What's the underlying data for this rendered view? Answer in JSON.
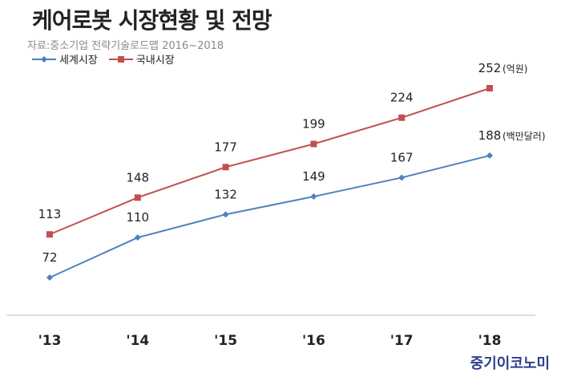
{
  "title": "케어로봇 시장현황 및 전망",
  "source": "자료:중소기업 전략기술로드맵 2016~2018",
  "brand": "중기이코노미",
  "chart_data": {
    "type": "line",
    "categories": [
      "'13",
      "'14",
      "'15",
      "'16",
      "'17",
      "'18"
    ],
    "series": [
      {
        "name": "세계시장",
        "values": [
          72,
          110,
          132,
          149,
          167,
          188
        ],
        "unit": "(백만달러)",
        "color": "#4f81bd",
        "marker": "diamond"
      },
      {
        "name": "국내시장",
        "values": [
          113,
          148,
          177,
          199,
          224,
          252
        ],
        "unit": "(억원)",
        "color": "#c0504d",
        "marker": "square"
      }
    ],
    "legend_position": "top-left",
    "grid": false
  }
}
